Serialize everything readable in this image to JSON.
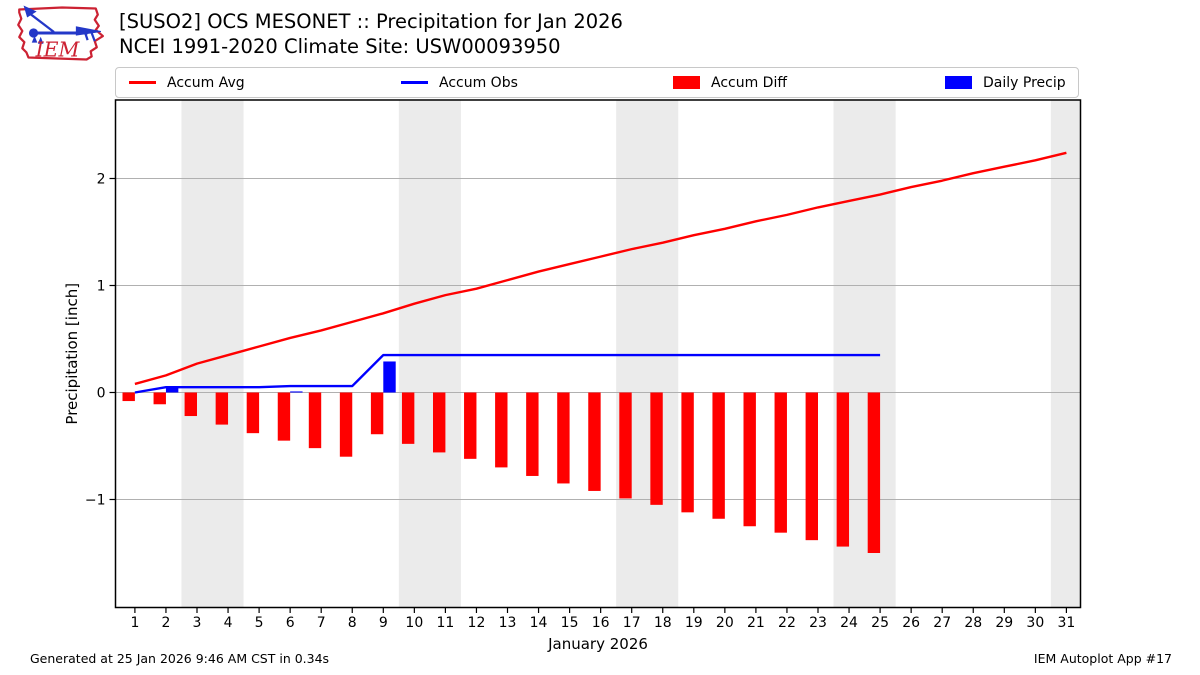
{
  "header": {
    "title_line1": "[SUSO2] OCS MESONET :: Precipitation for Jan 2026",
    "title_line2": "NCEI 1991-2020 Climate Site: USW00093950",
    "logo_text": "IEM"
  },
  "legend": {
    "items": [
      {
        "label": "Accum Avg",
        "swatch": "line",
        "color": "#ff0000"
      },
      {
        "label": "Accum Obs",
        "swatch": "line",
        "color": "#0000ff"
      },
      {
        "label": "Accum Diff",
        "swatch": "rect",
        "color": "#ff0000"
      },
      {
        "label": "Daily Precip",
        "swatch": "rect",
        "color": "#0000ff"
      }
    ]
  },
  "footer": {
    "left": "Generated at 25 Jan 2026 9:46 AM CST in 0.34s",
    "right": "IEM Autoplot App #17"
  },
  "colors": {
    "accum_avg": "#ff0000",
    "accum_obs": "#0000ff",
    "accum_diff": "#ff0000",
    "daily_precip": "#0000ff",
    "weekend_band": "#ebebeb",
    "gridline": "#b0b0b0",
    "axis": "#000000"
  },
  "chart_data": {
    "type": "line+bar",
    "title": "[SUSO2] OCS MESONET :: Precipitation for Jan 2026",
    "subtitle": "NCEI 1991-2020 Climate Site: USW00093950",
    "xlabel": "January 2026",
    "ylabel": "Precipitation [inch]",
    "xlim": [
      0.38,
      31.45
    ],
    "ylim": [
      -2.01,
      2.73
    ],
    "xticks": [
      1,
      2,
      3,
      4,
      5,
      6,
      7,
      8,
      9,
      10,
      11,
      12,
      13,
      14,
      15,
      16,
      17,
      18,
      19,
      20,
      21,
      22,
      23,
      24,
      25,
      26,
      27,
      28,
      29,
      30,
      31
    ],
    "yticks": [
      -1,
      0,
      1,
      2
    ],
    "ytick_labels": [
      "−1",
      "0",
      "1",
      "2"
    ],
    "grid": "horizontal",
    "legend_position": "top",
    "weekend_bands": [
      [
        2.5,
        4.5
      ],
      [
        9.5,
        11.5
      ],
      [
        16.5,
        18.5
      ],
      [
        23.5,
        25.5
      ],
      [
        30.5,
        31.45
      ]
    ],
    "series": [
      {
        "name": "Accum Avg",
        "type": "line",
        "color": "#ff0000",
        "x": [
          1,
          2,
          3,
          4,
          5,
          6,
          7,
          8,
          9,
          10,
          11,
          12,
          13,
          14,
          15,
          16,
          17,
          18,
          19,
          20,
          21,
          22,
          23,
          24,
          25,
          26,
          27,
          28,
          29,
          30,
          31
        ],
        "values": [
          0.08,
          0.16,
          0.27,
          0.35,
          0.43,
          0.51,
          0.58,
          0.66,
          0.74,
          0.83,
          0.91,
          0.97,
          1.05,
          1.13,
          1.2,
          1.27,
          1.34,
          1.4,
          1.47,
          1.53,
          1.6,
          1.66,
          1.73,
          1.79,
          1.85,
          1.92,
          1.98,
          2.05,
          2.11,
          2.17,
          2.24
        ]
      },
      {
        "name": "Accum Obs",
        "type": "line",
        "color": "#0000ff",
        "x": [
          1,
          2,
          3,
          4,
          5,
          6,
          7,
          8,
          9,
          10,
          11,
          12,
          13,
          14,
          15,
          16,
          17,
          18,
          19,
          20,
          21,
          22,
          23,
          24,
          25
        ],
        "values": [
          0.0,
          0.05,
          0.05,
          0.05,
          0.05,
          0.06,
          0.06,
          0.06,
          0.35,
          0.35,
          0.35,
          0.35,
          0.35,
          0.35,
          0.35,
          0.35,
          0.35,
          0.35,
          0.35,
          0.35,
          0.35,
          0.35,
          0.35,
          0.35,
          0.35
        ]
      },
      {
        "name": "Accum Diff",
        "type": "bar",
        "color": "#ff0000",
        "bar_side": "left",
        "x": [
          1,
          2,
          3,
          4,
          5,
          6,
          7,
          8,
          9,
          10,
          11,
          12,
          13,
          14,
          15,
          16,
          17,
          18,
          19,
          20,
          21,
          22,
          23,
          24,
          25
        ],
        "values": [
          -0.08,
          -0.11,
          -0.22,
          -0.3,
          -0.38,
          -0.45,
          -0.52,
          -0.6,
          -0.39,
          -0.48,
          -0.56,
          -0.62,
          -0.7,
          -0.78,
          -0.85,
          -0.92,
          -0.99,
          -1.05,
          -1.12,
          -1.18,
          -1.25,
          -1.31,
          -1.38,
          -1.44,
          -1.5
        ]
      },
      {
        "name": "Daily Precip",
        "type": "bar",
        "color": "#0000ff",
        "bar_side": "right",
        "x": [
          2,
          6,
          9
        ],
        "values": [
          0.05,
          0.01,
          0.29
        ]
      }
    ]
  }
}
